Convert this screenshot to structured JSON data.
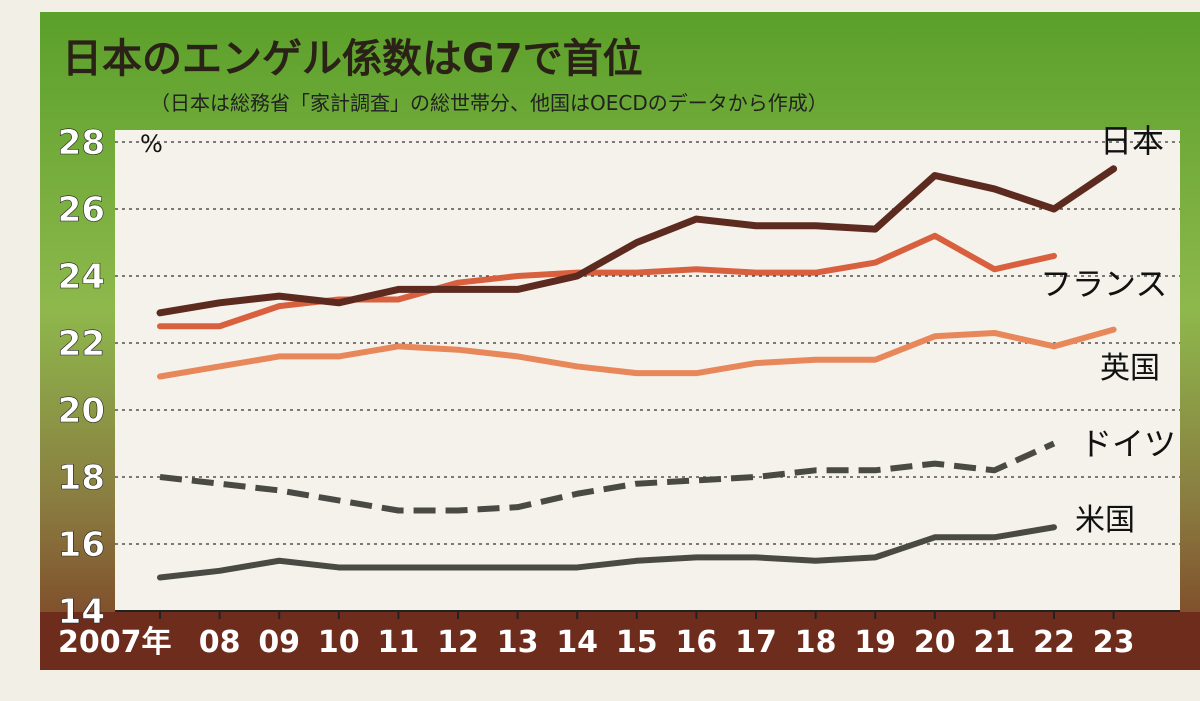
{
  "chart_data": {
    "type": "line",
    "title": "日本のエンゲル係数はG7で首位",
    "subtitle": "（日本は総務省「家計調査」の総世帯分、他国はOECDのデータから作成）",
    "unit": "%",
    "x": [
      "2007年",
      "08",
      "09",
      "10",
      "11",
      "12",
      "13",
      "14",
      "15",
      "16",
      "17",
      "18",
      "19",
      "20",
      "21",
      "22",
      "23"
    ],
    "ylim": [
      14,
      28
    ],
    "yticks": [
      14,
      16,
      18,
      20,
      22,
      24,
      26,
      28
    ],
    "grid": true,
    "series": [
      {
        "name": "日本",
        "color": "#5c2a1f",
        "dashed": false,
        "values": [
          22.9,
          23.2,
          23.4,
          23.2,
          23.6,
          23.6,
          23.6,
          24.0,
          25.0,
          25.7,
          25.5,
          25.5,
          25.4,
          27.0,
          26.6,
          26.0,
          27.2
        ]
      },
      {
        "name": "フランス",
        "color": "#d9603f",
        "dashed": false,
        "values": [
          22.5,
          22.5,
          23.1,
          23.3,
          23.3,
          23.8,
          24.0,
          24.1,
          24.1,
          24.2,
          24.1,
          24.1,
          24.4,
          25.2,
          24.2,
          24.6,
          null
        ]
      },
      {
        "name": "英国",
        "color": "#e8875a",
        "dashed": false,
        "values": [
          21.0,
          21.3,
          21.6,
          21.6,
          21.9,
          21.8,
          21.6,
          21.3,
          21.1,
          21.1,
          21.4,
          21.5,
          21.5,
          22.2,
          22.3,
          21.9,
          22.4
        ]
      },
      {
        "name": "ドイツ",
        "color": "#4a4a44",
        "dashed": true,
        "values": [
          18.0,
          17.8,
          17.6,
          17.3,
          17.0,
          17.0,
          17.1,
          17.5,
          17.8,
          17.9,
          18.0,
          18.2,
          18.2,
          18.4,
          18.2,
          19.0,
          null
        ]
      },
      {
        "name": "米国",
        "color": "#4a4a44",
        "dashed": false,
        "values": [
          15.0,
          15.2,
          15.5,
          15.3,
          15.3,
          15.3,
          15.3,
          15.3,
          15.5,
          15.6,
          15.6,
          15.5,
          15.6,
          16.2,
          16.2,
          16.5,
          null
        ]
      }
    ]
  }
}
